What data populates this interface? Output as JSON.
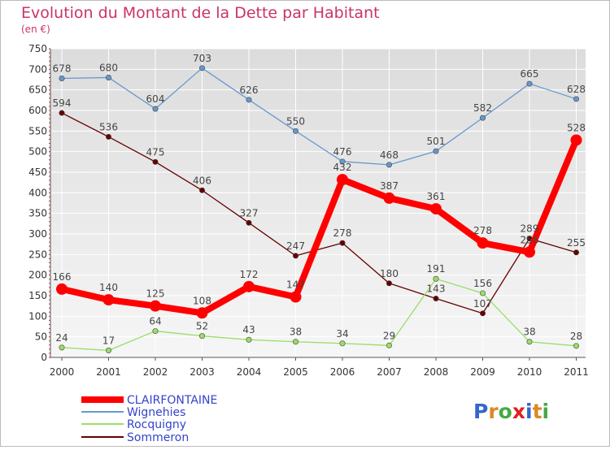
{
  "chart_data": {
    "type": "line",
    "title": "Evolution du Montant de la Dette par Habitant",
    "subtitle": "(en €)",
    "xlabel": "",
    "ylabel": "",
    "x": [
      "2000",
      "2001",
      "2002",
      "2003",
      "2004",
      "2005",
      "2006",
      "2007",
      "2008",
      "2009",
      "2010",
      "2011"
    ],
    "yticks": [
      0,
      50,
      100,
      150,
      200,
      250,
      300,
      350,
      400,
      450,
      500,
      550,
      600,
      650,
      700,
      750
    ],
    "ylim": [
      0,
      750
    ],
    "grid": true,
    "legend_position": "bottom-left",
    "series": [
      {
        "name": "CLAIRFONTAINE",
        "color": "#ff0000",
        "values": [
          166,
          140,
          125,
          108,
          172,
          147,
          432,
          387,
          361,
          278,
          256,
          528
        ],
        "labels": [
          "166",
          "140",
          "125",
          "108",
          "172",
          "147",
          "432",
          "387",
          "361",
          "278",
          "256",
          "528"
        ]
      },
      {
        "name": "Wignehies",
        "color": "#6699cc",
        "values": [
          678,
          680,
          604,
          703,
          626,
          550,
          476,
          468,
          501,
          582,
          665,
          628
        ],
        "labels": [
          "678",
          "680",
          "604",
          "703",
          "626",
          "550",
          "476",
          "468",
          "501",
          "582",
          "665",
          "628"
        ]
      },
      {
        "name": "Rocquigny",
        "color": "#99dd66",
        "values": [
          24,
          17,
          64,
          52,
          43,
          38,
          34,
          29,
          191,
          156,
          38,
          28
        ],
        "labels": [
          "24",
          "17",
          "64",
          "52",
          "43",
          "38",
          "34",
          "29",
          "191",
          "156",
          "38",
          "28"
        ]
      },
      {
        "name": "Sommeron",
        "color": "#660000",
        "values": [
          594,
          536,
          475,
          406,
          327,
          247,
          278,
          180,
          143,
          107,
          289,
          255
        ],
        "labels": [
          "594",
          "536",
          "475",
          "406",
          "327",
          "247",
          "278",
          "180",
          "143",
          "107",
          "289",
          "255"
        ]
      }
    ]
  },
  "logo": {
    "text": "Proxiti"
  }
}
